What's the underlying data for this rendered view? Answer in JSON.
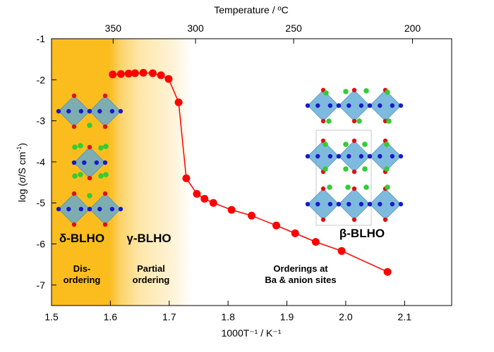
{
  "chart_data": {
    "type": "line",
    "title": "",
    "xlabel": "1000T⁻¹ / K⁻¹",
    "xlabel_parts": {
      "pre": "1000",
      "italic": "T",
      "sup1": "-1",
      "mid": " / K",
      "sup2": "-1"
    },
    "ylabel": "log (σ/S cm⁻¹)",
    "ylabel_parts": {
      "pre": "log (",
      "italic": "σ",
      "mid": "/S cm",
      "sup": "-1",
      "post": ")"
    },
    "top_xlabel": "Temperature / ºC",
    "xlim": [
      1.5,
      2.18
    ],
    "ylim": [
      -7.5,
      -1
    ],
    "xticks": [
      1.5,
      1.6,
      1.7,
      1.8,
      1.9,
      2.0,
      2.1
    ],
    "xtick_labels": [
      "1.5",
      "1.6",
      "1.7",
      "1.8",
      "1.9",
      "2.0",
      "2.1"
    ],
    "yticks": [
      -1,
      -2,
      -3,
      -4,
      -5,
      -6,
      -7
    ],
    "ytick_labels": [
      "-1",
      "-2",
      "-3",
      "-4",
      "-5",
      "-6",
      "-7"
    ],
    "top_ticks_celsius": [
      350,
      300,
      250,
      200
    ],
    "top_tick_labels": [
      "350",
      "300",
      "250",
      "200"
    ],
    "grid": false,
    "series": [
      {
        "color": "#ff0000",
        "x": [
          1.604,
          1.618,
          1.631,
          1.642,
          1.656,
          1.672,
          1.686,
          1.699,
          1.716,
          1.729,
          1.747,
          1.76,
          1.775,
          1.806,
          1.84,
          1.882,
          1.914,
          1.949,
          1.993,
          2.071
        ],
        "y": [
          -1.87,
          -1.86,
          -1.85,
          -1.84,
          -1.83,
          -1.84,
          -1.89,
          -1.98,
          -2.55,
          -4.4,
          -4.78,
          -4.9,
          -5.0,
          -5.17,
          -5.31,
          -5.55,
          -5.74,
          -5.95,
          -6.17,
          -6.68
        ]
      }
    ],
    "regions": [
      {
        "from": 1.5,
        "to": 1.6,
        "color": "#fbbd1e",
        "phase": "δ-BLHO",
        "desc": [
          "Dis-",
          "ordering"
        ]
      },
      {
        "from": 1.6,
        "to": 1.74,
        "color": "#fde9b0",
        "phase": "γ-BLHO",
        "desc": [
          "Partial",
          "ordering"
        ]
      },
      {
        "from": 1.74,
        "to": 2.18,
        "color": "#ffffff",
        "phase": "β-BLHO",
        "desc": [
          "Orderings at",
          "Ba & anion sites"
        ]
      }
    ]
  },
  "colors": {
    "octahedron": "#5ea9d6",
    "cation_blue": "#1a1ac8",
    "anion_red": "#e01010",
    "ba_green": "#33cc33"
  }
}
